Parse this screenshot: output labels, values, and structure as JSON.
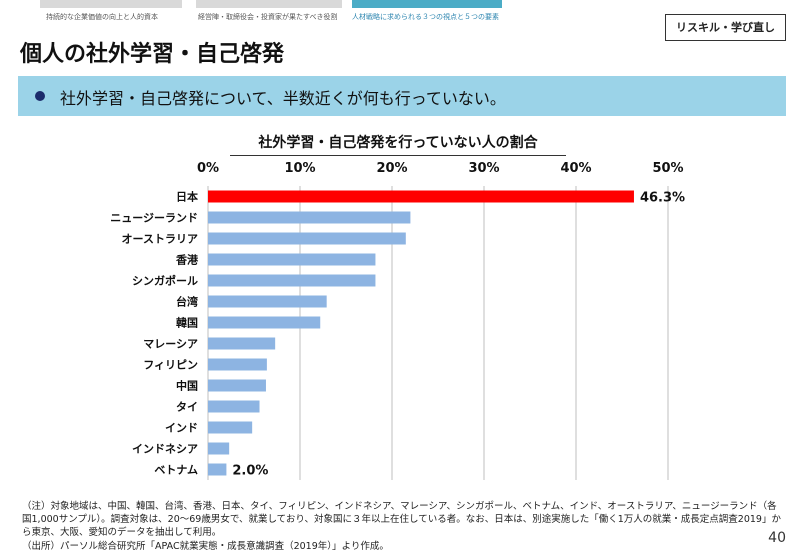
{
  "header": {
    "tabs": [
      {
        "label": "持続的な企業価値の向上と人的資本",
        "color": "#d9d9d9",
        "text_color": "#555555"
      },
      {
        "label": "経営陣・取締役会・投資家が果たすべき役割",
        "color": "#d9d9d9",
        "text_color": "#555555"
      },
      {
        "label": "人材戦略に求められる３つの視点と５つの要素",
        "color": "#4bacc6",
        "text_color": "#2e86b0"
      }
    ],
    "tag": "リスキル・学び直し"
  },
  "title": "個人の社外学習・自己啓発",
  "banner": {
    "text": "社外学習・自己啓発について、半数近くが何も行っていない。",
    "background": "#9bd3e8"
  },
  "chart_data": {
    "type": "bar",
    "orientation": "horizontal",
    "title": "社外学習・自己啓発を行っていない人の割合",
    "categories": [
      "日本",
      "ニュージーランド",
      "オーストラリア",
      "香港",
      "シンガポール",
      "台湾",
      "韓国",
      "マレーシア",
      "フィリピン",
      "中国",
      "タイ",
      "インド",
      "インドネシア",
      "ベトナム"
    ],
    "values": [
      46.3,
      22.0,
      21.5,
      18.2,
      18.2,
      12.9,
      12.2,
      7.3,
      6.4,
      6.3,
      5.6,
      4.8,
      2.3,
      2.0
    ],
    "data_labels": [
      {
        "category": "日本",
        "text": "46.3%"
      },
      {
        "category": "ベトナム",
        "text": "2.0%"
      }
    ],
    "xlim": [
      0,
      50
    ],
    "ticks": [
      "0%",
      "10%",
      "20%",
      "30%",
      "40%",
      "50%"
    ],
    "tick_values": [
      0,
      10,
      20,
      30,
      40,
      50
    ],
    "axis_position": "top",
    "grid": true,
    "colors": {
      "highlight": "#ff0000",
      "default": "#8db4e2",
      "grid": "#bfbfbf"
    }
  },
  "footer": {
    "note": "（注）対象地域は、中国、韓国、台湾、香港、日本、タイ、フィリピン、インドネシア、マレーシア、シンガポール、ベトナム、インド、オーストラリア、ニュージーランド（各国1,000サンプル）。調査対象は、20～69歳男女で、就業しており、対象国に３年以上在住している者。なお、日本は、別途実施した「働く1万人の就業・成長定点調査2019」から東京、大阪、愛知のデータを抽出して利用。",
    "source": "（出所）パーソル総合研究所「APAC就業実態・成長意識調査（2019年）」より作成。",
    "page": "40"
  }
}
